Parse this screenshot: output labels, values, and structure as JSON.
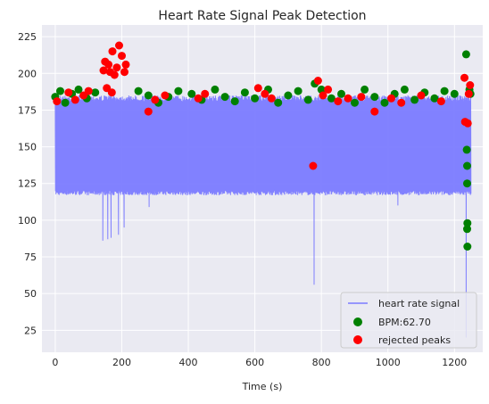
{
  "chart_data": {
    "type": "line",
    "title": "Heart Rate Signal Peak Detection",
    "xlabel": "Time (s)",
    "ylabel": "",
    "xlim": [
      -40,
      1285
    ],
    "ylim": [
      10,
      233
    ],
    "xticks": [
      0,
      200,
      400,
      600,
      800,
      1000,
      1200
    ],
    "yticks": [
      25,
      50,
      75,
      100,
      125,
      150,
      175,
      200,
      225
    ],
    "grid": true,
    "legend": {
      "placement": "lower-right",
      "entries": [
        "heart rate signal",
        "BPM:62.70",
        "rejected peaks"
      ]
    },
    "series": [
      {
        "name": "heart rate signal",
        "kind": "line",
        "color": "#7b7bff",
        "x_range": [
          0,
          1250
        ],
        "baseline_range": [
          117,
          185
        ],
        "dips": [
          {
            "x": 143,
            "y": 86
          },
          {
            "x": 158,
            "y": 87
          },
          {
            "x": 168,
            "y": 88
          },
          {
            "x": 190,
            "y": 90
          },
          {
            "x": 207,
            "y": 95
          },
          {
            "x": 282,
            "y": 109
          },
          {
            "x": 778,
            "y": 56
          },
          {
            "x": 1030,
            "y": 110
          },
          {
            "x": 1235,
            "y": 20
          }
        ]
      },
      {
        "name": "BPM:62.70",
        "kind": "scatter",
        "color": "#008000",
        "points": [
          [
            0,
            184
          ],
          [
            15,
            188
          ],
          [
            30,
            180
          ],
          [
            50,
            186
          ],
          [
            70,
            189
          ],
          [
            95,
            183
          ],
          [
            120,
            187
          ],
          [
            250,
            188
          ],
          [
            280,
            185
          ],
          [
            310,
            180
          ],
          [
            340,
            184
          ],
          [
            370,
            188
          ],
          [
            410,
            186
          ],
          [
            440,
            182
          ],
          [
            480,
            189
          ],
          [
            510,
            184
          ],
          [
            540,
            181
          ],
          [
            570,
            187
          ],
          [
            600,
            183
          ],
          [
            640,
            189
          ],
          [
            670,
            180
          ],
          [
            700,
            185
          ],
          [
            730,
            188
          ],
          [
            760,
            182
          ],
          [
            780,
            193
          ],
          [
            800,
            189
          ],
          [
            830,
            183
          ],
          [
            860,
            186
          ],
          [
            900,
            180
          ],
          [
            930,
            189
          ],
          [
            960,
            184
          ],
          [
            990,
            180
          ],
          [
            1020,
            186
          ],
          [
            1050,
            189
          ],
          [
            1080,
            182
          ],
          [
            1110,
            187
          ],
          [
            1140,
            183
          ],
          [
            1170,
            188
          ],
          [
            1200,
            186
          ],
          [
            1235,
            213
          ],
          [
            1237,
            148
          ],
          [
            1238,
            137
          ],
          [
            1238,
            125
          ],
          [
            1239,
            98
          ],
          [
            1238,
            94
          ],
          [
            1239,
            82
          ],
          [
            1245,
            189
          ],
          [
            1248,
            186
          ]
        ]
      },
      {
        "name": "rejected peaks",
        "kind": "scatter",
        "color": "#ff0000",
        "points": [
          [
            5,
            181
          ],
          [
            40,
            187
          ],
          [
            60,
            182
          ],
          [
            85,
            185
          ],
          [
            100,
            188
          ],
          [
            145,
            202
          ],
          [
            150,
            208
          ],
          [
            160,
            206
          ],
          [
            165,
            201
          ],
          [
            172,
            215
          ],
          [
            178,
            199
          ],
          [
            185,
            204
          ],
          [
            192,
            219
          ],
          [
            200,
            212
          ],
          [
            208,
            201
          ],
          [
            212,
            206
          ],
          [
            155,
            190
          ],
          [
            170,
            187
          ],
          [
            280,
            174
          ],
          [
            300,
            182
          ],
          [
            330,
            185
          ],
          [
            430,
            183
          ],
          [
            450,
            186
          ],
          [
            610,
            190
          ],
          [
            630,
            186
          ],
          [
            650,
            183
          ],
          [
            775,
            137
          ],
          [
            790,
            195
          ],
          [
            805,
            185
          ],
          [
            820,
            189
          ],
          [
            850,
            181
          ],
          [
            880,
            183
          ],
          [
            920,
            184
          ],
          [
            960,
            174
          ],
          [
            1010,
            183
          ],
          [
            1040,
            180
          ],
          [
            1100,
            185
          ],
          [
            1160,
            181
          ],
          [
            1230,
            197
          ],
          [
            1232,
            167
          ],
          [
            1240,
            166
          ],
          [
            1243,
            186
          ],
          [
            1247,
            192
          ]
        ]
      }
    ]
  }
}
